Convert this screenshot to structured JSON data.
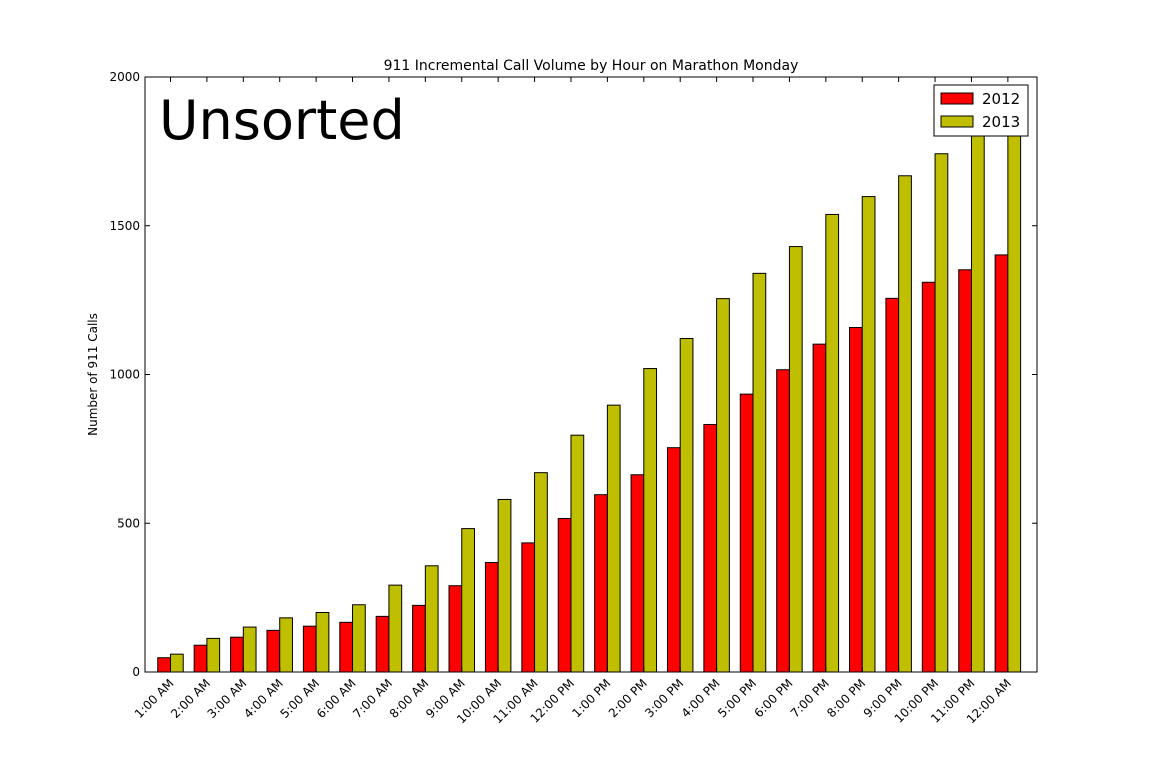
{
  "chart_data": {
    "type": "bar",
    "title": "911 Incremental Call Volume by Hour on Marathon Monday",
    "xlabel": "",
    "ylabel": "Number of 911 Calls",
    "ylim": [
      0,
      2000
    ],
    "yticks": [
      0,
      500,
      1000,
      1500,
      2000
    ],
    "grid": false,
    "legend_position": "top-right",
    "annotation": "Unsorted",
    "categories": [
      "1:00 AM",
      "2:00 AM",
      "3:00 AM",
      "4:00 AM",
      "5:00 AM",
      "6:00 AM",
      "7:00 AM",
      "8:00 AM",
      "9:00 AM",
      "10:00 AM",
      "11:00 AM",
      "12:00 PM",
      "1:00 PM",
      "2:00 PM",
      "3:00 PM",
      "4:00 PM",
      "5:00 PM",
      "6:00 PM",
      "7:00 PM",
      "8:00 PM",
      "9:00 PM",
      "10:00 PM",
      "11:00 PM",
      "12:00 AM"
    ],
    "series": [
      {
        "name": "2012",
        "color": "#ff0000",
        "values": [
          48,
          90,
          117,
          140,
          154,
          167,
          187,
          224,
          290,
          368,
          434,
          516,
          596,
          663,
          754,
          832,
          934,
          1016,
          1102,
          1158,
          1256,
          1310,
          1352,
          1402
        ]
      },
      {
        "name": "2013",
        "color": "#bfbf00",
        "values": [
          60,
          113,
          151,
          182,
          200,
          226,
          292,
          357,
          482,
          580,
          670,
          796,
          897,
          1020,
          1121,
          1255,
          1340,
          1430,
          1538,
          1598,
          1668,
          1742,
          1840,
          1850
        ]
      }
    ]
  }
}
